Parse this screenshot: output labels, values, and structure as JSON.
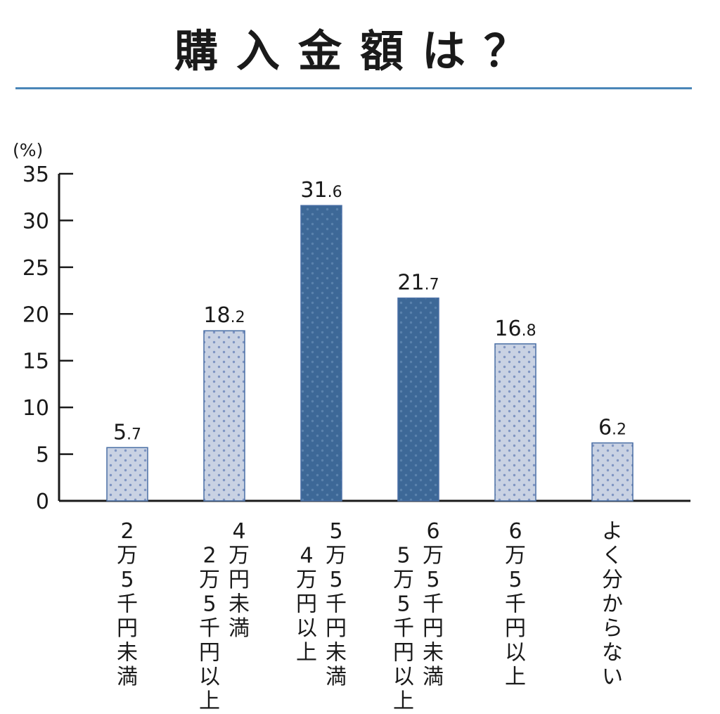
{
  "chart_data": {
    "type": "bar",
    "title": "購入金額は？",
    "ylabel": "(%)",
    "xlabel": "",
    "ylim": [
      0,
      35
    ],
    "yticks": [
      0,
      5,
      10,
      15,
      20,
      25,
      30,
      35
    ],
    "grid": false,
    "legend": "none",
    "categories": [
      "2万5千円未満",
      "2万5千円以上4万円未満",
      "4万円以上5万5千円未満",
      "5万5千円以上6万5千円未満",
      "6万5千円以上",
      "よく分からない"
    ],
    "category_columns": [
      [
        "2万5千円未満"
      ],
      [
        "2万5千円以上",
        "4万円未満"
      ],
      [
        "4万円以上",
        "5万5千円未満"
      ],
      [
        "5万5千円以上",
        "6万5千円未満"
      ],
      [
        "6万5千円以上"
      ],
      [
        "よく分からない"
      ]
    ],
    "values": [
      5.7,
      18.2,
      31.6,
      21.7,
      16.8,
      6.2
    ],
    "highlighted": [
      false,
      false,
      true,
      true,
      false,
      false
    ],
    "colors": {
      "light_bar": "#c9d2e3",
      "light_dot": "#7f95c2",
      "dark_bar": "#3d6897",
      "dark_dot": "#5a82ad",
      "bar_edge": "#4a6fa5",
      "title_rule": "#4a86b8",
      "axis": "#1a1a1a"
    }
  }
}
